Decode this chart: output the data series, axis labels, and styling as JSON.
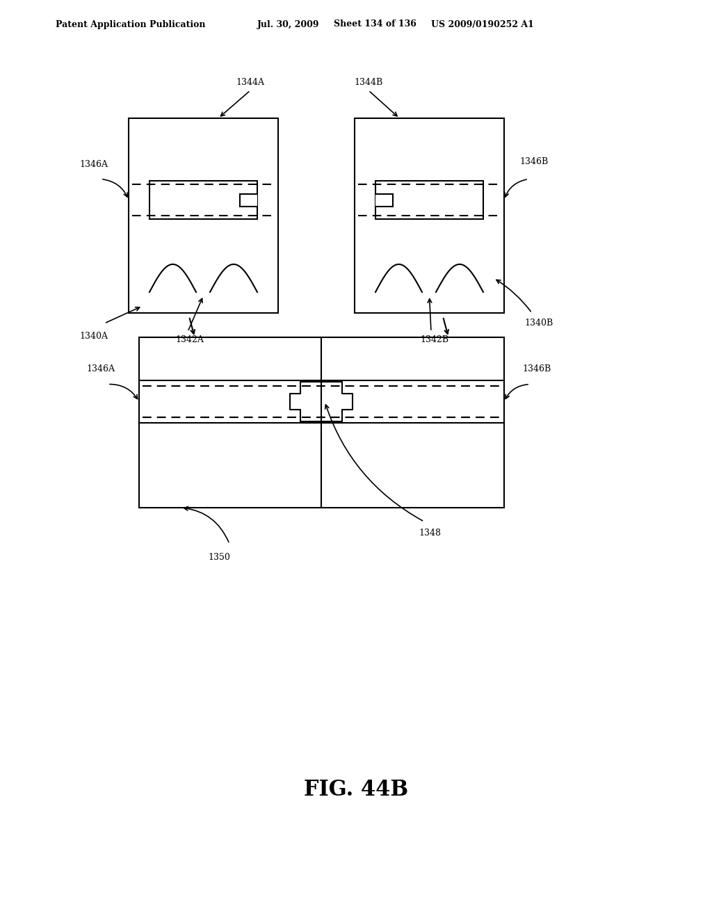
{
  "bg_color": "#ffffff",
  "header_text": "Patent Application Publication",
  "header_date": "Jul. 30, 2009",
  "header_sheet": "Sheet 134 of 136",
  "header_patent": "US 2009/0190252 A1",
  "fig_label": "FIG. 44B",
  "line_color": "#000000",
  "line_width": 1.5,
  "dashed_line_color": "#000000"
}
